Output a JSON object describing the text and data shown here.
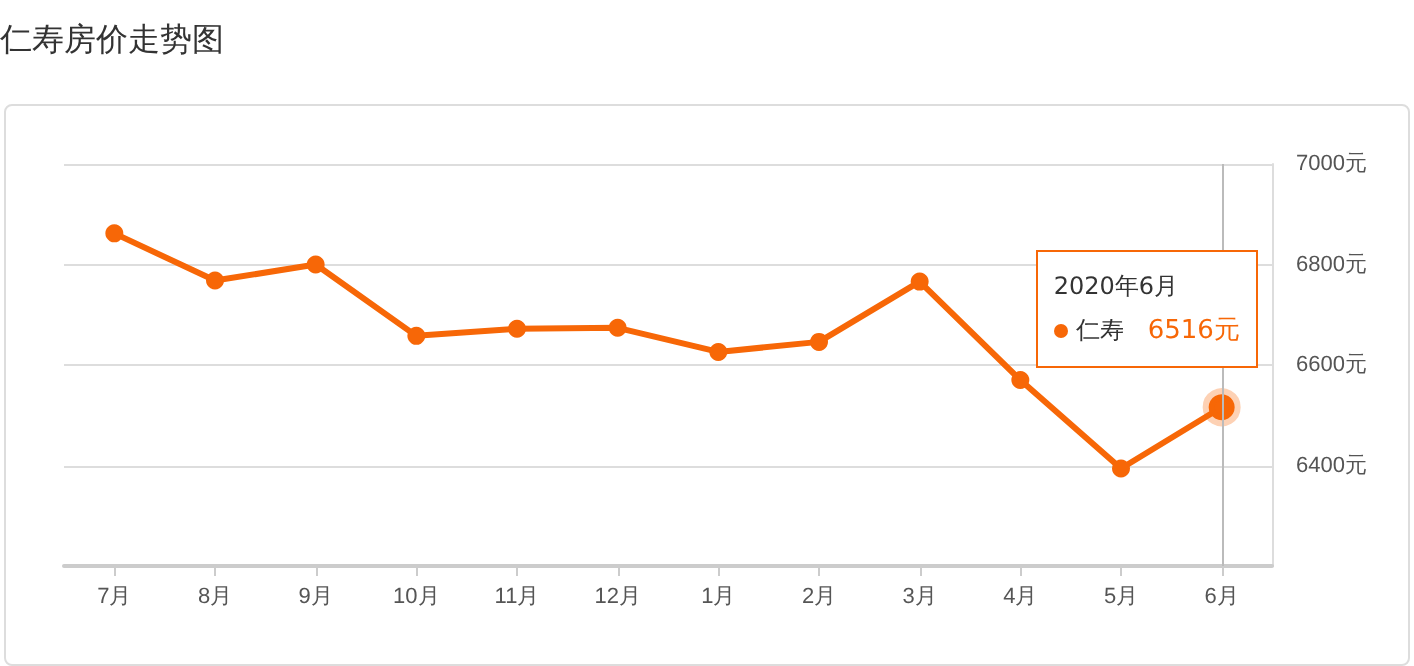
{
  "chart_data": {
    "type": "line",
    "title": "仁寿房价走势图",
    "categories": [
      "7月",
      "8月",
      "9月",
      "10月",
      "11月",
      "12月",
      "1月",
      "2月",
      "3月",
      "4月",
      "5月",
      "6月"
    ],
    "series": [
      {
        "name": "仁寿",
        "color": "#f76707",
        "values": [
          6862,
          6768,
          6800,
          6658,
          6672,
          6674,
          6626,
          6646,
          6766,
          6570,
          6394,
          6516
        ],
        "value_labels": [
          null,
          null,
          null,
          null,
          null,
          null,
          null,
          null,
          null,
          null,
          null,
          "6516元"
        ]
      }
    ],
    "annotations": [
      "2020年6月"
    ],
    "ref_lines": [
      {
        "axis": "x",
        "value": "6月",
        "color": "#bbbbbb"
      }
    ],
    "ylim": [
      6200,
      7000
    ],
    "yticks": [
      {
        "value": 6200,
        "label": null
      },
      {
        "value": 6400,
        "label": "6400元"
      },
      {
        "value": 6600,
        "label": "6600元"
      },
      {
        "value": 6800,
        "label": "6800元"
      },
      {
        "value": 7000,
        "label": "7000元"
      }
    ],
    "grid": "y",
    "marker": "circle",
    "line_style": "solid",
    "legend": "right"
  }
}
